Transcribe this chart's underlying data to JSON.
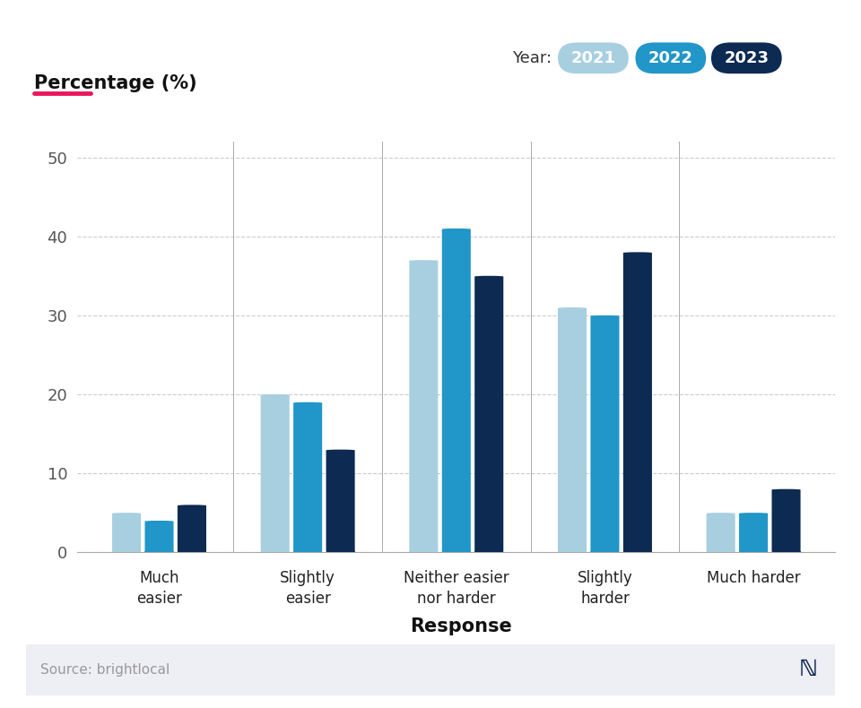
{
  "categories": [
    "Much\neasier",
    "Slightly\neasier",
    "Neither easier\nnor harder",
    "Slightly\nharder",
    "Much harder"
  ],
  "years": [
    "2021",
    "2022",
    "2023"
  ],
  "values": {
    "2021": [
      5,
      20,
      37,
      31,
      5
    ],
    "2022": [
      4,
      19,
      41,
      30,
      5
    ],
    "2023": [
      6,
      13,
      35,
      38,
      8
    ]
  },
  "colors": {
    "2021": "#a8cfe0",
    "2022": "#2196c8",
    "2023": "#0d2a52"
  },
  "title_ylabel": "Percentage (%)",
  "title_xlabel": "Response",
  "ylabel_red_line": "#e8175d",
  "year_label": "Year:",
  "ylim": [
    0,
    52
  ],
  "yticks": [
    0,
    10,
    20,
    30,
    40,
    50
  ],
  "bg_color": "#ffffff",
  "grid_color": "#cccccc",
  "source_text": "Source: brightlocal",
  "source_bg": "#eeeef5",
  "bar_width": 0.22
}
